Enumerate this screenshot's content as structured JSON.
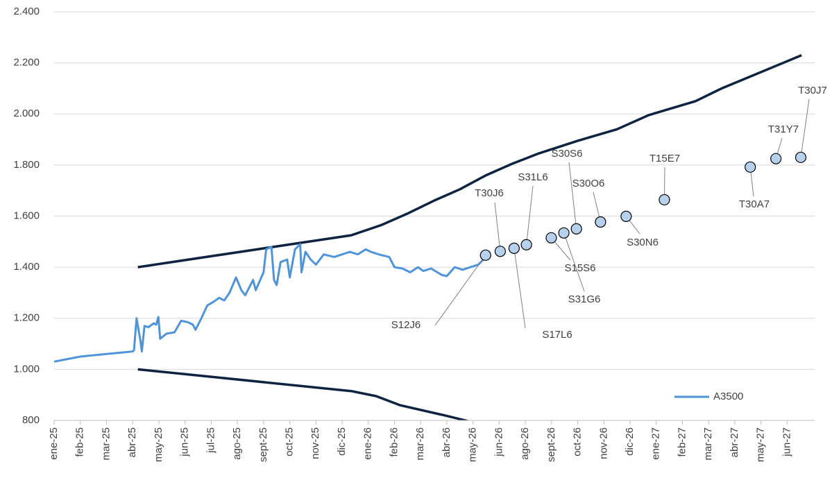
{
  "chart_data": {
    "type": "line",
    "ylim": [
      800,
      2400
    ],
    "yticks": [
      800,
      {
        "value": 1000,
        "label": "1.000"
      },
      {
        "value": 1200,
        "label": "1.200"
      },
      {
        "value": 1400,
        "label": "1.400"
      },
      {
        "value": 1600,
        "label": "1.600"
      },
      {
        "value": 1800,
        "label": "1.800"
      },
      {
        "value": 2000,
        "label": "2.000"
      },
      {
        "value": 2200,
        "label": "2.200"
      },
      {
        "value": 2400,
        "label": "2.400"
      }
    ],
    "xlim": [
      0,
      29.05
    ],
    "xticks": [
      {
        "value": 0,
        "label": "ene-25"
      },
      {
        "value": 1,
        "label": "feb-25"
      },
      {
        "value": 2,
        "label": "mar-25"
      },
      {
        "value": 3,
        "label": "abr-25"
      },
      {
        "value": 4,
        "label": "may-25"
      },
      {
        "value": 5,
        "label": "jun-25"
      },
      {
        "value": 6,
        "label": "jul-25"
      },
      {
        "value": 7,
        "label": "ago-25"
      },
      {
        "value": 8,
        "label": "sept-25"
      },
      {
        "value": 9,
        "label": "oct-25"
      },
      {
        "value": 10,
        "label": "nov-25"
      },
      {
        "value": 11,
        "label": "dic-25"
      },
      {
        "value": 12,
        "label": "ene-26"
      },
      {
        "value": 13,
        "label": "feb-26"
      },
      {
        "value": 14,
        "label": "mar-26"
      },
      {
        "value": 15,
        "label": "abr-26"
      },
      {
        "value": 16,
        "label": "may-26"
      },
      {
        "value": 17,
        "label": "jun-26"
      },
      {
        "value": 18,
        "label": "ago-26"
      },
      {
        "value": 19,
        "label": "sept-26"
      },
      {
        "value": 20,
        "label": "oct-26"
      },
      {
        "value": 21,
        "label": "nov-26"
      },
      {
        "value": 22,
        "label": "dic-26"
      },
      {
        "value": 23,
        "label": "ene-27"
      },
      {
        "value": 24,
        "label": "feb-27"
      },
      {
        "value": 25,
        "label": "mar-27"
      },
      {
        "value": 26,
        "label": "abr-27"
      },
      {
        "value": 27,
        "label": "may-27"
      },
      {
        "value": 28,
        "label": "jun-27"
      }
    ],
    "grid": true,
    "legend": "bottom right",
    "series": [
      {
        "type": "line",
        "color": "#0e2340",
        "x": [
          3.2,
          11.35,
          12.5,
          13.5,
          14.5,
          15.5,
          16.5,
          17.5,
          18.5,
          20,
          21.5,
          22.7,
          24.5,
          25.5,
          28.55
        ],
        "values": [
          1400,
          1525,
          1565,
          1610,
          1660,
          1705,
          1760,
          1805,
          1845,
          1895,
          1940,
          1995,
          2050,
          2100,
          2230
        ]
      },
      {
        "type": "line",
        "color": "#0e2340",
        "x": [
          3.2,
          11.35,
          12.3,
          13.2,
          14.9,
          16.3,
          17.0
        ],
        "values": [
          1000,
          915,
          895,
          860,
          820,
          785,
          770
        ]
      },
      {
        "type": "line",
        "name": "A3500",
        "color": "#4f93d8",
        "x": [
          0,
          1,
          2,
          3,
          3.05,
          3.15,
          3.3,
          3.35,
          3.45,
          3.6,
          3.8,
          3.9,
          3.98,
          4.05,
          4.3,
          4.6,
          4.85,
          5.1,
          5.3,
          5.4,
          5.6,
          5.85,
          6.1,
          6.3,
          6.5,
          6.7,
          6.95,
          7.15,
          7.3,
          7.6,
          7.7,
          8.0,
          8.1,
          8.3,
          8.4,
          8.5,
          8.65,
          8.9,
          9.0,
          9.2,
          9.4,
          9.45,
          9.6,
          9.8,
          10.0,
          10.3,
          10.7,
          11.0,
          11.3,
          11.6,
          11.9,
          12.1,
          12.4,
          12.8,
          13.0,
          13.3,
          13.6,
          13.9,
          14.1,
          14.4,
          14.8,
          15.0,
          15.3,
          15.6,
          15.9,
          16.2,
          16.55
        ],
        "values": [
          1030,
          1050,
          1060,
          1070,
          1075,
          1200,
          1110,
          1070,
          1170,
          1165,
          1180,
          1175,
          1205,
          1120,
          1140,
          1145,
          1190,
          1185,
          1175,
          1155,
          1195,
          1250,
          1265,
          1280,
          1270,
          1300,
          1360,
          1310,
          1290,
          1350,
          1310,
          1380,
          1470,
          1480,
          1350,
          1330,
          1420,
          1430,
          1360,
          1470,
          1490,
          1380,
          1460,
          1430,
          1410,
          1450,
          1440,
          1450,
          1460,
          1450,
          1470,
          1460,
          1450,
          1440,
          1400,
          1395,
          1380,
          1400,
          1385,
          1395,
          1370,
          1365,
          1400,
          1390,
          1400,
          1410,
          1445
        ]
      },
      {
        "type": "scatter",
        "color": "#b7d0ec",
        "x": [
          16.48,
          17.04,
          17.57,
          18.04,
          18.99,
          19.47,
          19.95,
          20.87,
          21.85,
          23.31,
          26.59,
          27.57,
          28.52
        ],
        "values": [
          1447,
          1462,
          1474,
          1488,
          1515,
          1534,
          1550,
          1577,
          1599,
          1664,
          1792,
          1825,
          1830
        ],
        "labels": [
          "S12J6",
          "T30J6",
          "S17L6",
          "S31L6",
          "S15S6",
          "S31G6",
          "S30S6",
          "S30O6",
          "S30N6",
          "T15E7",
          "T30A7",
          "T31Y7",
          "T30J7"
        ]
      }
    ]
  }
}
